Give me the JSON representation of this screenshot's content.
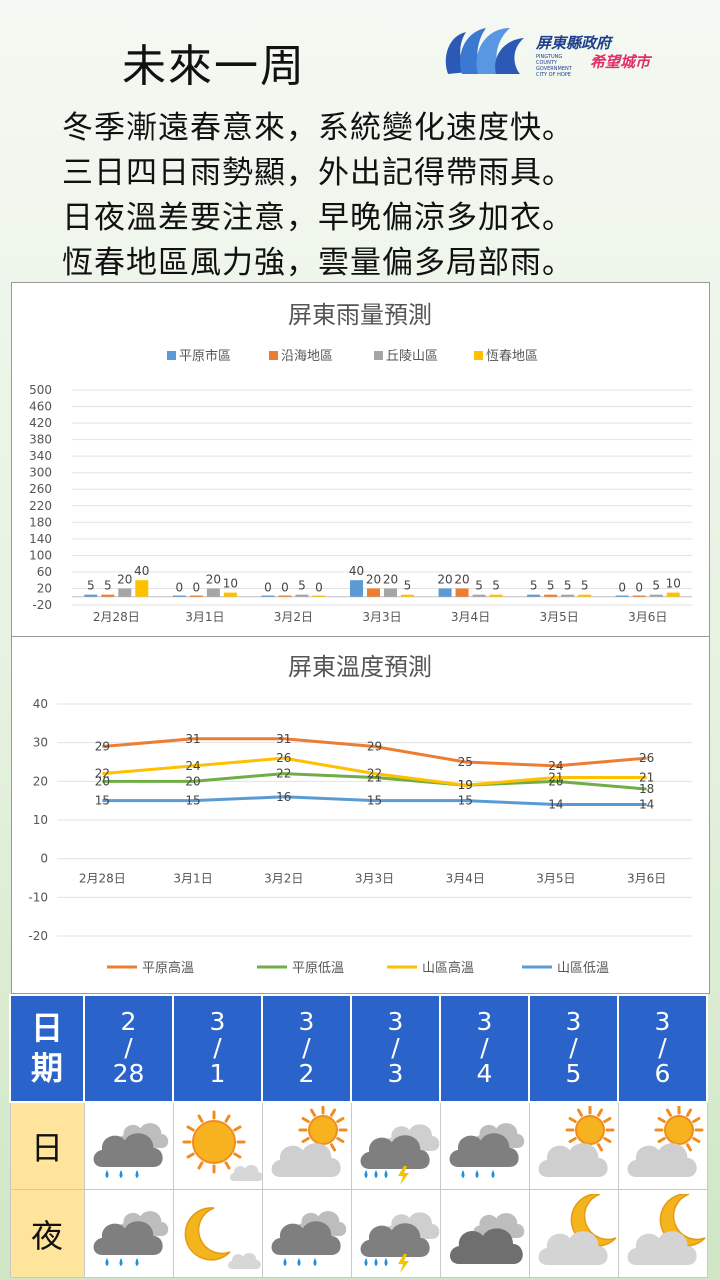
{
  "header": {
    "title": "未來一周",
    "logo": {
      "line1": "屏東縣政府",
      "line2": "希望城市",
      "sub": "PINGTUNG COUNTY GOVERNMENT CITY OF HOPE"
    },
    "poem": [
      "冬季漸遠春意來，系統變化速度快。",
      "三日四日雨勢顯，外出記得帶雨具。",
      "日夜溫差要注意，早晚偏涼多加衣。",
      "恆春地區風力強，雲量偏多局部雨。"
    ]
  },
  "chart_data": [
    {
      "type": "bar",
      "title": "屏東雨量預測",
      "categories": [
        "2月28日",
        "3月1日",
        "3月2日",
        "3月3日",
        "3月4日",
        "3月5日",
        "3月6日"
      ],
      "series": [
        {
          "name": "平原市區",
          "color": "#5b9bd5",
          "values": [
            5,
            0,
            0,
            40,
            20,
            5,
            0
          ]
        },
        {
          "name": "沿海地區",
          "color": "#ed7d31",
          "values": [
            5,
            0,
            0,
            20,
            20,
            5,
            0
          ]
        },
        {
          "name": "丘陵山區",
          "color": "#a5a5a5",
          "values": [
            20,
            20,
            5,
            20,
            5,
            5,
            5
          ]
        },
        {
          "name": "恆春地區",
          "color": "#ffc000",
          "values": [
            40,
            10,
            0,
            5,
            5,
            5,
            10
          ]
        }
      ],
      "yticks": [
        500,
        460,
        420,
        380,
        340,
        300,
        260,
        220,
        180,
        140,
        100,
        60,
        20,
        -20
      ],
      "ylim": [
        -20,
        500
      ],
      "legend": "top"
    },
    {
      "type": "line",
      "title": "屏東溫度預測",
      "categories": [
        "2月28日",
        "3月1日",
        "3月2日",
        "3月3日",
        "3月4日",
        "3月5日",
        "3月6日"
      ],
      "series": [
        {
          "name": "平原高溫",
          "color": "#ed7d31",
          "values": [
            29,
            31,
            31,
            29,
            25,
            24,
            26
          ]
        },
        {
          "name": "平原低溫",
          "color": "#70ad47",
          "values": [
            20,
            20,
            22,
            21,
            19,
            20,
            18
          ]
        },
        {
          "name": "山區高溫",
          "color": "#ffc000",
          "values": [
            22,
            24,
            26,
            22,
            19,
            21,
            21
          ]
        },
        {
          "name": "山區低溫",
          "color": "#5b9bd5",
          "values": [
            15,
            15,
            16,
            15,
            15,
            14,
            14
          ]
        }
      ],
      "yticks": [
        40,
        30,
        20,
        10,
        0,
        -10,
        -20
      ],
      "ylim": [
        -20,
        40
      ],
      "legend": "bottom"
    }
  ],
  "forecast": {
    "header_label": "日期",
    "dates": [
      "2/28",
      "3/1",
      "3/2",
      "3/3",
      "3/4",
      "3/5",
      "3/6"
    ],
    "day_label": "日",
    "night_label": "夜",
    "day_icons": [
      "cloud-rain-icon",
      "sun-icon",
      "partly-sunny-icon",
      "thunderstorm-icon",
      "cloud-rain-icon",
      "partly-sunny-icon",
      "partly-sunny-icon"
    ],
    "night_icons": [
      "cloud-rain-icon",
      "moon-icon",
      "cloud-rain-icon",
      "thunderstorm-icon",
      "cloudy-icon",
      "moon-cloud-icon",
      "moon-cloud-icon"
    ]
  }
}
